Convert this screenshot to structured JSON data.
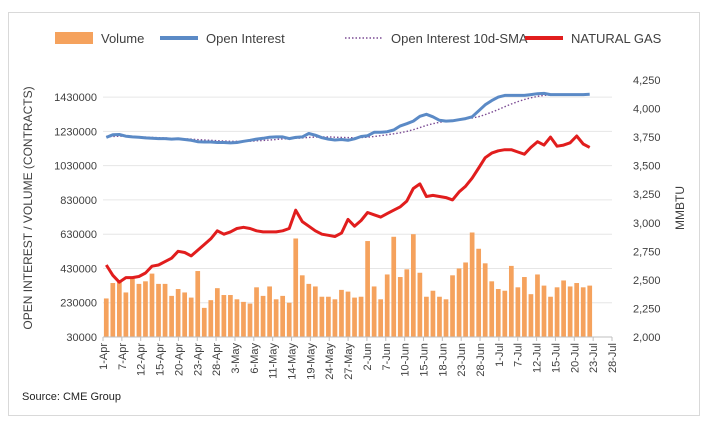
{
  "source": "Source: CME Group",
  "chart_data": {
    "type": "bar",
    "title": "",
    "legend_position": "top",
    "legend": [
      {
        "name": "Volume",
        "kind": "bar",
        "color": "#f5a25d"
      },
      {
        "name": "Open Interest",
        "kind": "line",
        "color": "#5b8ac6"
      },
      {
        "name": "Open Interest 10d-SMA",
        "kind": "dotted",
        "color": "#7b4b94"
      },
      {
        "name": "NATURAL GAS",
        "kind": "line",
        "color": "#e11d1d"
      }
    ],
    "y_left": {
      "label": "OPEN INTEREST / VOLUME (CONTRACTS)",
      "min": 30000,
      "max": 1530000,
      "ticks": [
        30000,
        230000,
        430000,
        630000,
        830000,
        1030000,
        1230000,
        1430000
      ]
    },
    "y_right": {
      "label": "MMBTU",
      "min": 2000,
      "max": 4250,
      "ticks": [
        "2,000",
        "2,250",
        "2,500",
        "2,750",
        "3,000",
        "3,250",
        "3,500",
        "3,750",
        "4,000",
        "4,250"
      ]
    },
    "x_ticks": [
      "1-Apr",
      "7-Apr",
      "12-Apr",
      "15-Apr",
      "20-Apr",
      "23-Apr",
      "28-Apr",
      "3-May",
      "6-May",
      "11-May",
      "14-May",
      "19-May",
      "24-May",
      "27-May",
      "2-Jun",
      "7-Jun",
      "10-Jun",
      "15-Jun",
      "18-Jun",
      "23-Jun",
      "28-Jun",
      "1-Jul",
      "7-Jul",
      "12-Jul",
      "15-Jul",
      "20-Jul",
      "23-Jul",
      "28-Jul"
    ],
    "series": [
      {
        "name": "Volume",
        "axis": "left",
        "values": [
          255000,
          345000,
          355000,
          290000,
          370000,
          340000,
          355000,
          400000,
          340000,
          340000,
          270000,
          310000,
          290000,
          260000,
          415000,
          200000,
          245000,
          315000,
          275000,
          275000,
          250000,
          235000,
          225000,
          320000,
          270000,
          325000,
          250000,
          270000,
          230000,
          605000,
          390000,
          340000,
          325000,
          265000,
          265000,
          250000,
          305000,
          295000,
          260000,
          265000,
          590000,
          325000,
          250000,
          395000,
          615000,
          380000,
          425000,
          630000,
          405000,
          265000,
          300000,
          265000,
          250000,
          390000,
          430000,
          465000,
          640000,
          545000,
          460000,
          355000,
          310000,
          300000,
          445000,
          320000,
          380000,
          280000,
          395000,
          330000,
          265000,
          320000,
          360000,
          325000,
          345000,
          320000,
          330000
        ]
      },
      {
        "name": "Open Interest",
        "axis": "left",
        "values": [
          1195000,
          1210000,
          1212000,
          1202000,
          1198000,
          1196000,
          1192000,
          1190000,
          1188000,
          1188000,
          1185000,
          1187000,
          1183000,
          1178000,
          1170000,
          1168000,
          1168000,
          1165000,
          1165000,
          1163000,
          1165000,
          1172000,
          1178000,
          1185000,
          1190000,
          1196000,
          1198000,
          1198000,
          1188000,
          1195000,
          1198000,
          1218000,
          1208000,
          1193000,
          1185000,
          1180000,
          1183000,
          1178000,
          1187000,
          1200000,
          1205000,
          1225000,
          1225000,
          1228000,
          1238000,
          1262000,
          1275000,
          1290000,
          1318000,
          1330000,
          1315000,
          1295000,
          1290000,
          1292000,
          1298000,
          1305000,
          1315000,
          1350000,
          1385000,
          1410000,
          1430000,
          1440000,
          1440000,
          1440000,
          1440000,
          1445000,
          1450000,
          1452000,
          1445000,
          1445000,
          1445000,
          1445000,
          1445000,
          1445000,
          1447000
        ]
      },
      {
        "name": "Open Interest 10d-SMA",
        "axis": "left",
        "values": [
          1200000,
          1200000,
          1202000,
          1202000,
          1200000,
          1198000,
          1197000,
          1195000,
          1193000,
          1192000,
          1190000,
          1189000,
          1187000,
          1185000,
          1182000,
          1180000,
          1178000,
          1176000,
          1174000,
          1172000,
          1172000,
          1172000,
          1173000,
          1175000,
          1177000,
          1180000,
          1183000,
          1186000,
          1188000,
          1190000,
          1192000,
          1195000,
          1197000,
          1198000,
          1198000,
          1196000,
          1195000,
          1194000,
          1193000,
          1194000,
          1196000,
          1200000,
          1205000,
          1210000,
          1216000,
          1222000,
          1230000,
          1240000,
          1252000,
          1265000,
          1275000,
          1283000,
          1290000,
          1296000,
          1300000,
          1304000,
          1308000,
          1316000,
          1328000,
          1342000,
          1358000,
          1374000,
          1390000,
          1404000,
          1416000,
          1426000,
          1434000,
          1440000,
          1443000,
          1444000,
          1444000,
          1444000,
          1445000,
          1445000,
          1445000
        ]
      },
      {
        "name": "NATURAL GAS",
        "axis": "right",
        "values": [
          2630,
          2540,
          2480,
          2520,
          2520,
          2530,
          2560,
          2620,
          2630,
          2660,
          2690,
          2750,
          2740,
          2710,
          2760,
          2810,
          2860,
          2930,
          2900,
          2920,
          2950,
          2960,
          2950,
          2930,
          2920,
          2920,
          2920,
          2930,
          2950,
          3110,
          3010,
          2970,
          2930,
          2900,
          2890,
          2880,
          2910,
          3030,
          2970,
          3020,
          3090,
          3070,
          3050,
          3080,
          3110,
          3140,
          3190,
          3300,
          3340,
          3230,
          3240,
          3230,
          3220,
          3200,
          3270,
          3320,
          3390,
          3480,
          3570,
          3610,
          3630,
          3640,
          3640,
          3620,
          3600,
          3660,
          3710,
          3680,
          3750,
          3670,
          3680,
          3700,
          3760,
          3690,
          3660
        ]
      }
    ]
  }
}
